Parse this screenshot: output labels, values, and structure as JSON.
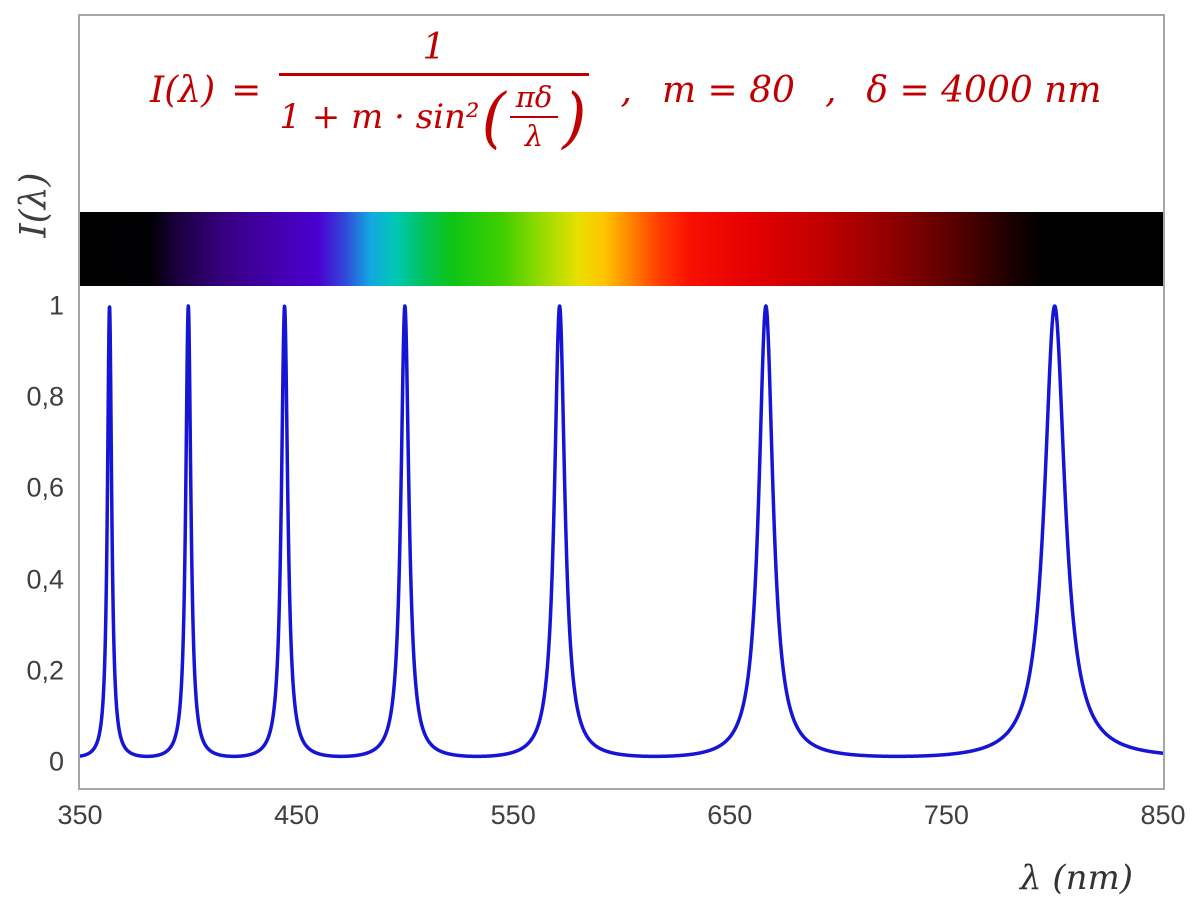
{
  "figure": {
    "border_color": "#a6a6a6",
    "background": "#ffffff"
  },
  "formula": {
    "color": "#c00000",
    "lhs": "I(λ)",
    "equals": "=",
    "numerator": "1",
    "denominator_prefix": "1 + m · sin²",
    "lparen": "(",
    "rparen": ")",
    "inner_numerator": "πδ",
    "inner_denominator": "λ",
    "comma": ",",
    "param_m": "m = 80",
    "param_delta": "δ = 4000 nm"
  },
  "axes": {
    "y_label": "I(λ)",
    "x_label": "λ  (nm)",
    "tick_color": "#3f3f3f"
  },
  "spectrum_bar": {
    "stops": [
      {
        "nm": 350,
        "color": "#000000"
      },
      {
        "nm": 383,
        "color": "#010003"
      },
      {
        "nm": 395,
        "color": "#1b0040"
      },
      {
        "nm": 415,
        "color": "#35007d"
      },
      {
        "nm": 440,
        "color": "#4300ad"
      },
      {
        "nm": 460,
        "color": "#4b00d0"
      },
      {
        "nm": 472,
        "color": "#3146d8"
      },
      {
        "nm": 484,
        "color": "#13a8e0"
      },
      {
        "nm": 496,
        "color": "#00c8b4"
      },
      {
        "nm": 508,
        "color": "#00c35e"
      },
      {
        "nm": 522,
        "color": "#0ec414"
      },
      {
        "nm": 545,
        "color": "#3fcf00"
      },
      {
        "nm": 565,
        "color": "#9fdc00"
      },
      {
        "nm": 580,
        "color": "#e8e000"
      },
      {
        "nm": 592,
        "color": "#ffc400"
      },
      {
        "nm": 605,
        "color": "#ff8000"
      },
      {
        "nm": 618,
        "color": "#ff3a00"
      },
      {
        "nm": 632,
        "color": "#f90f00"
      },
      {
        "nm": 660,
        "color": "#e30000"
      },
      {
        "nm": 695,
        "color": "#bd0000"
      },
      {
        "nm": 725,
        "color": "#8f0000"
      },
      {
        "nm": 755,
        "color": "#560000"
      },
      {
        "nm": 780,
        "color": "#1c0000"
      },
      {
        "nm": 795,
        "color": "#000000"
      },
      {
        "nm": 850,
        "color": "#000000"
      }
    ]
  },
  "chart_data": {
    "type": "line",
    "title": "",
    "xlabel": "λ (nm)",
    "ylabel": "I(λ)",
    "x_range": [
      350,
      850
    ],
    "y_range": [
      0,
      1
    ],
    "x_ticks": [
      350,
      450,
      550,
      650,
      750,
      850
    ],
    "x_tick_labels": [
      "350",
      "450",
      "550",
      "650",
      "750",
      "850"
    ],
    "y_ticks": [
      0,
      0.2,
      0.4,
      0.6,
      0.8,
      1
    ],
    "y_tick_labels": [
      "0",
      "0,2",
      "0,4",
      "0,6",
      "0,8",
      "1"
    ],
    "function": {
      "form": "I(λ) = 1 / (1 + m·sin²(πδ/λ))",
      "m": 80,
      "delta_nm": 4000
    },
    "peak_wavelengths_nm": [
      363.6,
      400.0,
      444.4,
      500.0,
      571.4,
      666.7,
      800.0
    ],
    "peak_value": 1,
    "min_value": 0.0123,
    "line_color": "#1515d6",
    "line_width": 3.5,
    "samples": 4200,
    "grid": false,
    "legend": "none"
  }
}
